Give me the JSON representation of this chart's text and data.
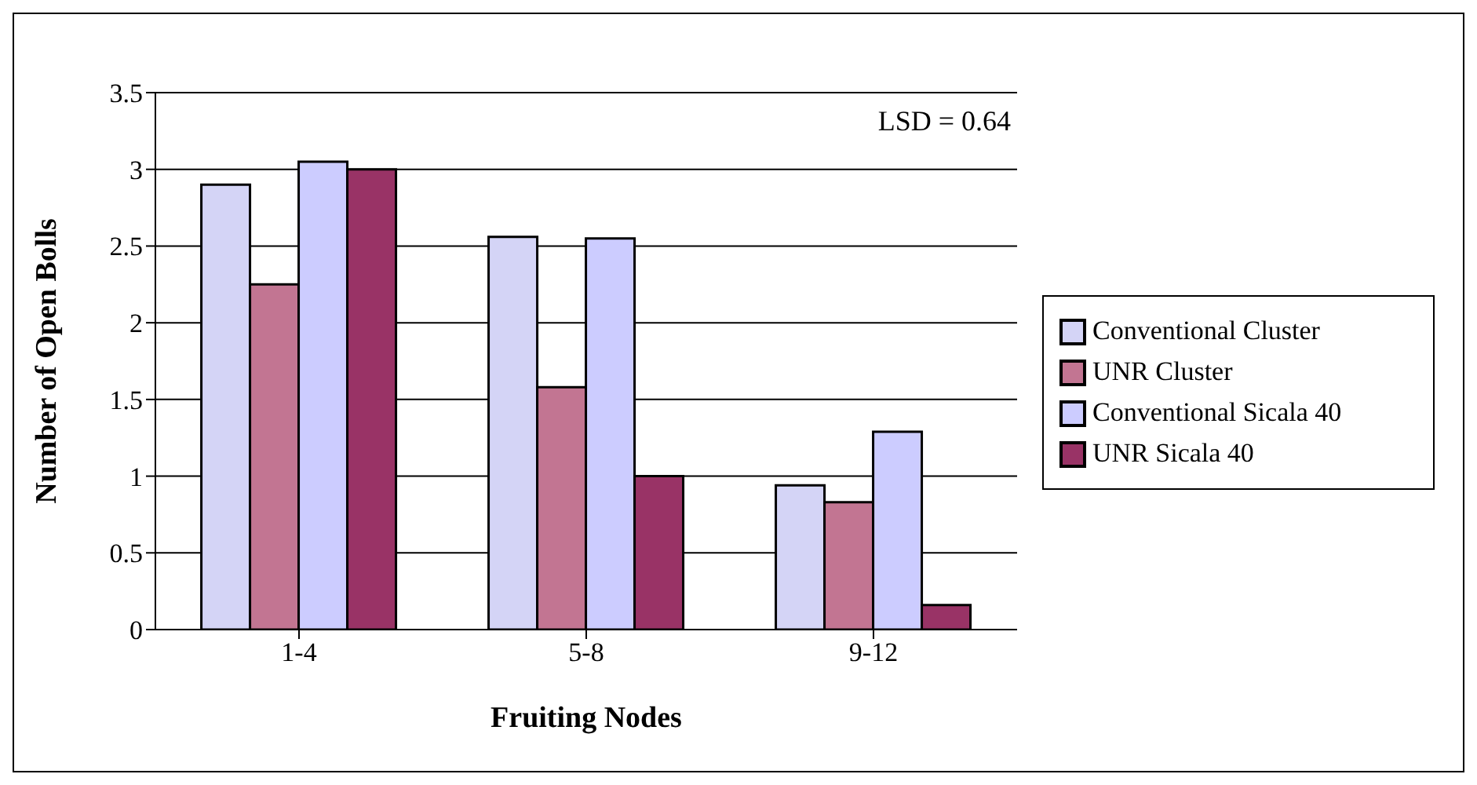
{
  "chart_data": {
    "type": "bar",
    "xlabel": "Fruiting Nodes",
    "ylabel": "Number of Open Bolls",
    "categories": [
      "1-4",
      "5-8",
      "9-12"
    ],
    "series": [
      {
        "name": "Conventional Cluster",
        "color": "#d4d4f6",
        "values": [
          2.9,
          2.56,
          0.94
        ]
      },
      {
        "name": "UNR Cluster",
        "color": "#c27592",
        "values": [
          2.25,
          1.58,
          0.83
        ]
      },
      {
        "name": "Conventional Sicala 40",
        "color": "#ccccff",
        "values": [
          3.05,
          2.55,
          1.29
        ]
      },
      {
        "name": "UNR Sicala 40",
        "color": "#993366",
        "values": [
          3.0,
          1.0,
          0.16
        ]
      }
    ],
    "ylim": [
      0,
      3.5
    ],
    "yticks": [
      0,
      0.5,
      1,
      1.5,
      2,
      2.5,
      3,
      3.5
    ],
    "grid": "y",
    "legend": "right",
    "annotations": [
      "LSD = 0.64"
    ]
  }
}
